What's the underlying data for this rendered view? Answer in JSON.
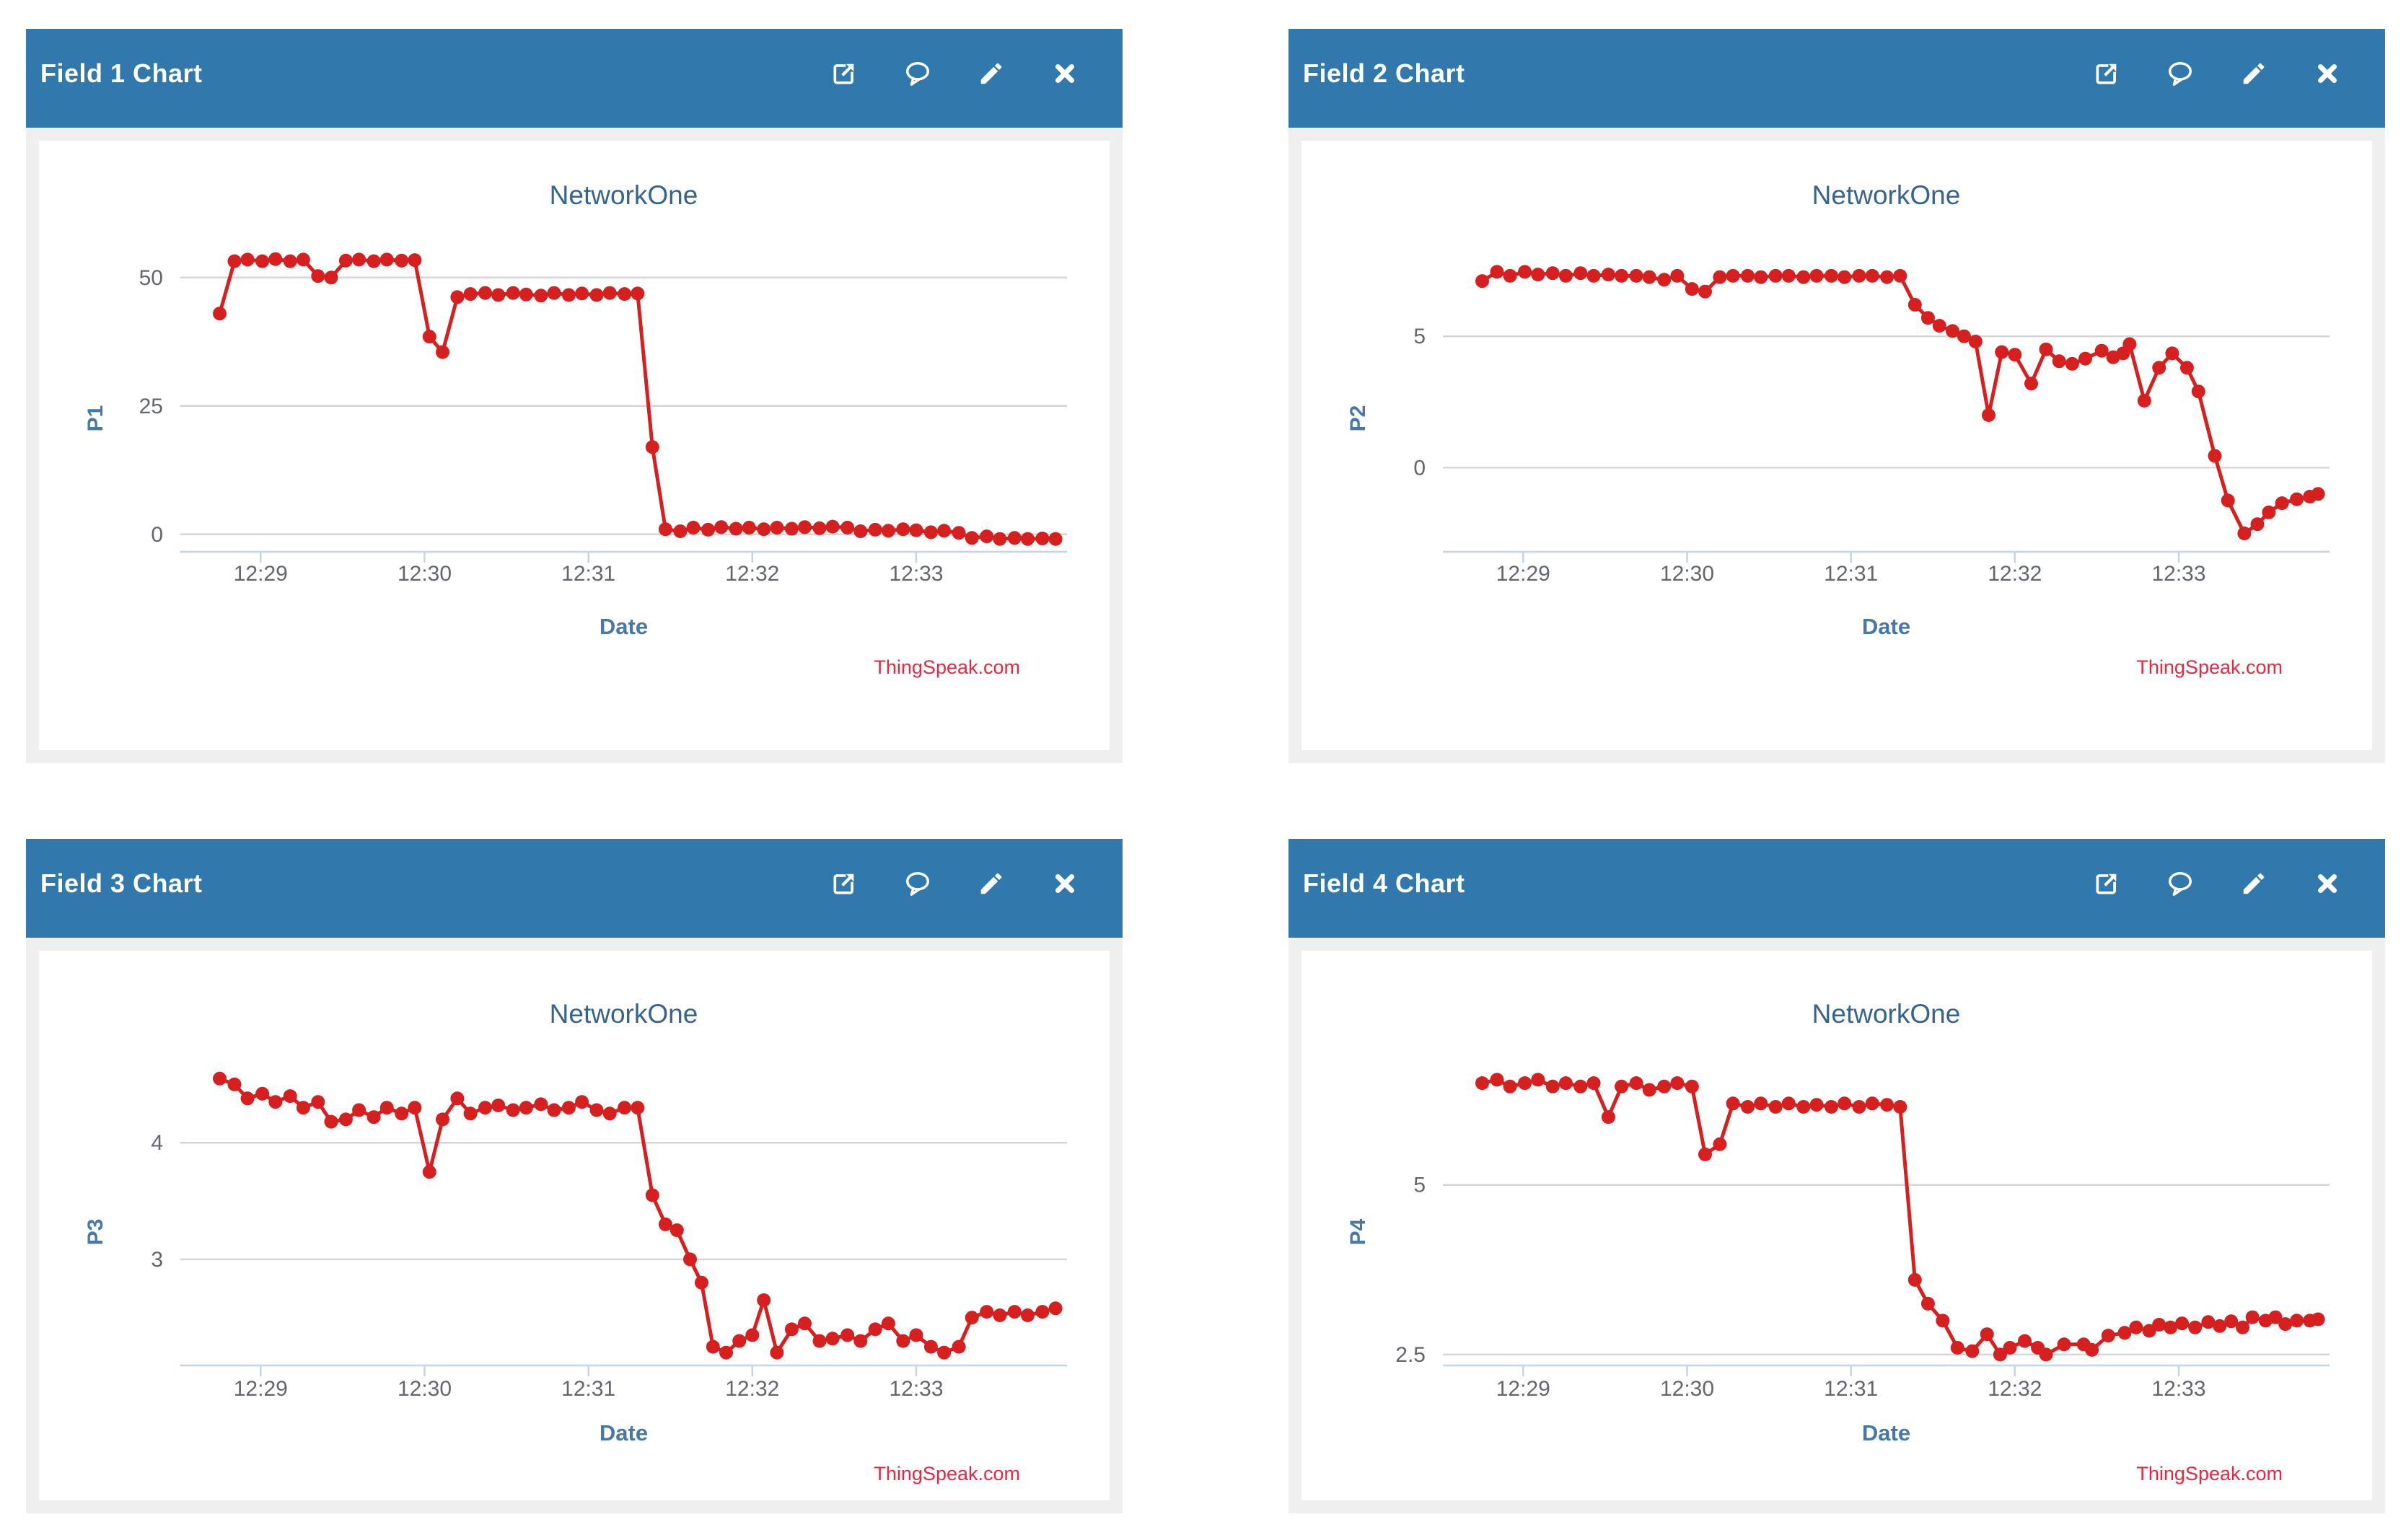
{
  "page": {
    "background": "#ffffff"
  },
  "theme": {
    "header_bg": "#3179ac",
    "header_text": "#ffffff",
    "panel_body_bg": "#efefef",
    "chart_bg": "#ffffff",
    "title_color": "#36648e",
    "axis_label_color": "#4678a8",
    "tick_label_color": "#63676d",
    "gridline_color": "#d6d6d6",
    "axis_line_color": "#c6d5e3",
    "series_color": "#d62020",
    "credits_color": "#e7293f"
  },
  "panels": [
    {
      "title": "Field 1 Chart",
      "icons": [
        "external-link",
        "comment",
        "edit",
        "close"
      ]
    },
    {
      "title": "Field 2 Chart",
      "icons": [
        "external-link",
        "comment",
        "edit",
        "close"
      ]
    },
    {
      "title": "Field 3 Chart",
      "icons": [
        "external-link",
        "comment",
        "edit",
        "close"
      ]
    },
    {
      "title": "Field 4 Chart",
      "icons": [
        "external-link",
        "comment",
        "edit",
        "close"
      ]
    }
  ],
  "chart_data": [
    {
      "type": "line",
      "title": "NetworkOne",
      "xlabel": "Date",
      "ylabel": "P1",
      "credits": "ThingSpeak.com",
      "legend": false,
      "grid": "horizontal",
      "x_unit": "minutes after 12:00",
      "xlim": [
        28.51,
        33.92
      ],
      "ylim": [
        -3.4,
        57.0
      ],
      "x_ticks": [
        {
          "v": 29,
          "label": "12:29"
        },
        {
          "v": 30,
          "label": "12:30"
        },
        {
          "v": 31,
          "label": "12:31"
        },
        {
          "v": 32,
          "label": "12:32"
        },
        {
          "v": 33,
          "label": "12:33"
        }
      ],
      "y_ticks": [
        {
          "v": 0,
          "label": "0"
        },
        {
          "v": 25,
          "label": "25"
        },
        {
          "v": 50,
          "label": "50"
        }
      ],
      "points": [
        [
          28.75,
          43
        ],
        [
          28.84,
          53.2
        ],
        [
          28.92,
          53.5
        ],
        [
          29.01,
          53.2
        ],
        [
          29.09,
          53.6
        ],
        [
          29.18,
          53.2
        ],
        [
          29.26,
          53.5
        ],
        [
          29.35,
          50.3
        ],
        [
          29.43,
          50.0
        ],
        [
          29.52,
          53.3
        ],
        [
          29.6,
          53.5
        ],
        [
          29.69,
          53.2
        ],
        [
          29.77,
          53.5
        ],
        [
          29.86,
          53.3
        ],
        [
          29.94,
          53.4
        ],
        [
          30.03,
          38.5
        ],
        [
          30.11,
          35.5
        ],
        [
          30.2,
          46.2
        ],
        [
          30.28,
          46.8
        ],
        [
          30.37,
          47.0
        ],
        [
          30.45,
          46.6
        ],
        [
          30.54,
          47.0
        ],
        [
          30.62,
          46.7
        ],
        [
          30.71,
          46.5
        ],
        [
          30.79,
          47.0
        ],
        [
          30.88,
          46.6
        ],
        [
          30.96,
          46.9
        ],
        [
          31.05,
          46.6
        ],
        [
          31.13,
          47.0
        ],
        [
          31.22,
          46.8
        ],
        [
          31.3,
          46.9
        ],
        [
          31.39,
          17.0
        ],
        [
          31.47,
          1.0
        ],
        [
          31.56,
          0.6
        ],
        [
          31.64,
          1.3
        ],
        [
          31.73,
          0.9
        ],
        [
          31.81,
          1.4
        ],
        [
          31.9,
          1.1
        ],
        [
          31.98,
          1.3
        ],
        [
          32.07,
          1.0
        ],
        [
          32.15,
          1.3
        ],
        [
          32.24,
          1.1
        ],
        [
          32.32,
          1.4
        ],
        [
          32.41,
          1.2
        ],
        [
          32.49,
          1.5
        ],
        [
          32.58,
          1.3
        ],
        [
          32.66,
          0.6
        ],
        [
          32.75,
          0.9
        ],
        [
          32.83,
          0.7
        ],
        [
          32.92,
          1.0
        ],
        [
          33.0,
          0.8
        ],
        [
          33.09,
          0.4
        ],
        [
          33.17,
          0.7
        ],
        [
          33.26,
          0.3
        ],
        [
          33.34,
          -0.7
        ],
        [
          33.43,
          -0.4
        ],
        [
          33.51,
          -0.9
        ],
        [
          33.6,
          -0.7
        ],
        [
          33.68,
          -0.9
        ],
        [
          33.77,
          -0.8
        ],
        [
          33.85,
          -0.9
        ]
      ]
    },
    {
      "type": "line",
      "title": "NetworkOne",
      "xlabel": "Date",
      "ylabel": "P2",
      "credits": "ThingSpeak.com",
      "legend": false,
      "grid": "horizontal",
      "x_unit": "minutes after 12:00",
      "xlim": [
        28.51,
        33.92
      ],
      "ylim": [
        -3.2,
        8.6
      ],
      "x_ticks": [
        {
          "v": 29,
          "label": "12:29"
        },
        {
          "v": 30,
          "label": "12:30"
        },
        {
          "v": 31,
          "label": "12:31"
        },
        {
          "v": 32,
          "label": "12:32"
        },
        {
          "v": 33,
          "label": "12:33"
        }
      ],
      "y_ticks": [
        {
          "v": 0,
          "label": "0"
        },
        {
          "v": 5,
          "label": "5"
        }
      ],
      "points": [
        [
          28.75,
          7.1
        ],
        [
          28.84,
          7.45
        ],
        [
          28.92,
          7.3
        ],
        [
          29.01,
          7.45
        ],
        [
          29.09,
          7.35
        ],
        [
          29.18,
          7.4
        ],
        [
          29.26,
          7.3
        ],
        [
          29.35,
          7.4
        ],
        [
          29.43,
          7.3
        ],
        [
          29.52,
          7.35
        ],
        [
          29.6,
          7.3
        ],
        [
          29.69,
          7.3
        ],
        [
          29.77,
          7.25
        ],
        [
          29.86,
          7.15
        ],
        [
          29.94,
          7.3
        ],
        [
          30.03,
          6.8
        ],
        [
          30.11,
          6.7
        ],
        [
          30.2,
          7.25
        ],
        [
          30.28,
          7.3
        ],
        [
          30.37,
          7.3
        ],
        [
          30.45,
          7.25
        ],
        [
          30.54,
          7.3
        ],
        [
          30.62,
          7.3
        ],
        [
          30.71,
          7.25
        ],
        [
          30.79,
          7.3
        ],
        [
          30.88,
          7.3
        ],
        [
          30.96,
          7.25
        ],
        [
          31.05,
          7.3
        ],
        [
          31.13,
          7.3
        ],
        [
          31.22,
          7.25
        ],
        [
          31.3,
          7.3
        ],
        [
          31.39,
          6.2
        ],
        [
          31.47,
          5.7
        ],
        [
          31.54,
          5.4
        ],
        [
          31.62,
          5.2
        ],
        [
          31.69,
          5.0
        ],
        [
          31.76,
          4.8
        ],
        [
          31.84,
          2.0
        ],
        [
          31.92,
          4.4
        ],
        [
          32.0,
          4.3
        ],
        [
          32.1,
          3.2
        ],
        [
          32.19,
          4.5
        ],
        [
          32.27,
          4.05
        ],
        [
          32.35,
          3.95
        ],
        [
          32.43,
          4.15
        ],
        [
          32.53,
          4.45
        ],
        [
          32.6,
          4.2
        ],
        [
          32.66,
          4.35
        ],
        [
          32.7,
          4.7
        ],
        [
          32.79,
          2.55
        ],
        [
          32.88,
          3.8
        ],
        [
          32.96,
          4.35
        ],
        [
          33.05,
          3.8
        ],
        [
          33.12,
          2.9
        ],
        [
          33.22,
          0.45
        ],
        [
          33.3,
          -1.25
        ],
        [
          33.4,
          -2.5
        ],
        [
          33.48,
          -2.15
        ],
        [
          33.55,
          -1.7
        ],
        [
          33.63,
          -1.35
        ],
        [
          33.72,
          -1.2
        ],
        [
          33.8,
          -1.1
        ],
        [
          33.85,
          -1.0
        ]
      ]
    },
    {
      "type": "line",
      "title": "NetworkOne",
      "xlabel": "Date",
      "ylabel": "P3",
      "credits": "ThingSpeak.com",
      "legend": false,
      "grid": "horizontal",
      "x_unit": "minutes after 12:00",
      "xlim": [
        28.51,
        33.92
      ],
      "ylim": [
        2.09,
        4.75
      ],
      "x_ticks": [
        {
          "v": 29,
          "label": "12:29"
        },
        {
          "v": 30,
          "label": "12:30"
        },
        {
          "v": 31,
          "label": "12:31"
        },
        {
          "v": 32,
          "label": "12:32"
        },
        {
          "v": 33,
          "label": "12:33"
        }
      ],
      "y_ticks": [
        {
          "v": 3,
          "label": "3"
        },
        {
          "v": 4,
          "label": "4"
        }
      ],
      "points": [
        [
          28.75,
          4.55
        ],
        [
          28.84,
          4.5
        ],
        [
          28.92,
          4.38
        ],
        [
          29.01,
          4.42
        ],
        [
          29.09,
          4.35
        ],
        [
          29.18,
          4.4
        ],
        [
          29.26,
          4.3
        ],
        [
          29.35,
          4.35
        ],
        [
          29.43,
          4.18
        ],
        [
          29.52,
          4.2
        ],
        [
          29.6,
          4.28
        ],
        [
          29.69,
          4.22
        ],
        [
          29.77,
          4.3
        ],
        [
          29.86,
          4.25
        ],
        [
          29.94,
          4.3
        ],
        [
          30.03,
          3.75
        ],
        [
          30.11,
          4.2
        ],
        [
          30.2,
          4.38
        ],
        [
          30.28,
          4.25
        ],
        [
          30.37,
          4.3
        ],
        [
          30.45,
          4.32
        ],
        [
          30.54,
          4.28
        ],
        [
          30.62,
          4.3
        ],
        [
          30.71,
          4.33
        ],
        [
          30.79,
          4.28
        ],
        [
          30.88,
          4.3
        ],
        [
          30.96,
          4.35
        ],
        [
          31.05,
          4.28
        ],
        [
          31.13,
          4.25
        ],
        [
          31.22,
          4.3
        ],
        [
          31.3,
          4.3
        ],
        [
          31.39,
          3.55
        ],
        [
          31.47,
          3.3
        ],
        [
          31.54,
          3.25
        ],
        [
          31.62,
          3.0
        ],
        [
          31.69,
          2.8
        ],
        [
          31.76,
          2.25
        ],
        [
          31.84,
          2.2
        ],
        [
          31.92,
          2.3
        ],
        [
          32.0,
          2.35
        ],
        [
          32.07,
          2.65
        ],
        [
          32.15,
          2.2
        ],
        [
          32.24,
          2.4
        ],
        [
          32.32,
          2.45
        ],
        [
          32.41,
          2.3
        ],
        [
          32.49,
          2.32
        ],
        [
          32.58,
          2.35
        ],
        [
          32.66,
          2.3
        ],
        [
          32.75,
          2.4
        ],
        [
          32.83,
          2.45
        ],
        [
          32.92,
          2.3
        ],
        [
          33.0,
          2.35
        ],
        [
          33.09,
          2.25
        ],
        [
          33.17,
          2.2
        ],
        [
          33.26,
          2.25
        ],
        [
          33.34,
          2.5
        ],
        [
          33.43,
          2.55
        ],
        [
          33.51,
          2.52
        ],
        [
          33.6,
          2.55
        ],
        [
          33.68,
          2.52
        ],
        [
          33.77,
          2.55
        ],
        [
          33.85,
          2.58
        ]
      ]
    },
    {
      "type": "line",
      "title": "NetworkOne",
      "xlabel": "Date",
      "ylabel": "P4",
      "credits": "ThingSpeak.com",
      "legend": false,
      "grid": "horizontal",
      "x_unit": "minutes after 12:00",
      "xlim": [
        28.51,
        33.92
      ],
      "ylim": [
        2.34,
        6.91
      ],
      "x_ticks": [
        {
          "v": 29,
          "label": "12:29"
        },
        {
          "v": 30,
          "label": "12:30"
        },
        {
          "v": 31,
          "label": "12:31"
        },
        {
          "v": 32,
          "label": "12:32"
        },
        {
          "v": 33,
          "label": "12:33"
        }
      ],
      "y_ticks": [
        {
          "v": 2.5,
          "label": "2.5"
        },
        {
          "v": 5,
          "label": "5"
        }
      ],
      "points": [
        [
          28.75,
          6.5
        ],
        [
          28.84,
          6.55
        ],
        [
          28.92,
          6.45
        ],
        [
          29.01,
          6.5
        ],
        [
          29.09,
          6.55
        ],
        [
          29.18,
          6.45
        ],
        [
          29.26,
          6.5
        ],
        [
          29.35,
          6.45
        ],
        [
          29.43,
          6.5
        ],
        [
          29.52,
          6.0
        ],
        [
          29.6,
          6.45
        ],
        [
          29.69,
          6.5
        ],
        [
          29.77,
          6.4
        ],
        [
          29.86,
          6.45
        ],
        [
          29.94,
          6.5
        ],
        [
          30.03,
          6.45
        ],
        [
          30.11,
          5.45
        ],
        [
          30.2,
          5.6
        ],
        [
          30.28,
          6.2
        ],
        [
          30.37,
          6.15
        ],
        [
          30.45,
          6.2
        ],
        [
          30.54,
          6.15
        ],
        [
          30.62,
          6.2
        ],
        [
          30.71,
          6.15
        ],
        [
          30.79,
          6.18
        ],
        [
          30.88,
          6.15
        ],
        [
          30.96,
          6.2
        ],
        [
          31.05,
          6.15
        ],
        [
          31.13,
          6.2
        ],
        [
          31.22,
          6.18
        ],
        [
          31.3,
          6.15
        ],
        [
          31.39,
          3.6
        ],
        [
          31.47,
          3.25
        ],
        [
          31.56,
          3.0
        ],
        [
          31.65,
          2.6
        ],
        [
          31.74,
          2.55
        ],
        [
          31.83,
          2.8
        ],
        [
          31.91,
          2.5
        ],
        [
          31.97,
          2.6
        ],
        [
          32.06,
          2.7
        ],
        [
          32.14,
          2.6
        ],
        [
          32.19,
          2.5
        ],
        [
          32.3,
          2.65
        ],
        [
          32.42,
          2.65
        ],
        [
          32.47,
          2.57
        ],
        [
          32.57,
          2.78
        ],
        [
          32.67,
          2.82
        ],
        [
          32.74,
          2.9
        ],
        [
          32.82,
          2.85
        ],
        [
          32.88,
          2.94
        ],
        [
          32.95,
          2.9
        ],
        [
          33.02,
          2.96
        ],
        [
          33.1,
          2.9
        ],
        [
          33.18,
          2.98
        ],
        [
          33.25,
          2.92
        ],
        [
          33.32,
          2.99
        ],
        [
          33.39,
          2.9
        ],
        [
          33.45,
          3.05
        ],
        [
          33.53,
          3.0
        ],
        [
          33.59,
          3.05
        ],
        [
          33.65,
          2.95
        ],
        [
          33.72,
          3.0
        ],
        [
          33.8,
          3.0
        ],
        [
          33.85,
          3.02
        ]
      ]
    }
  ]
}
